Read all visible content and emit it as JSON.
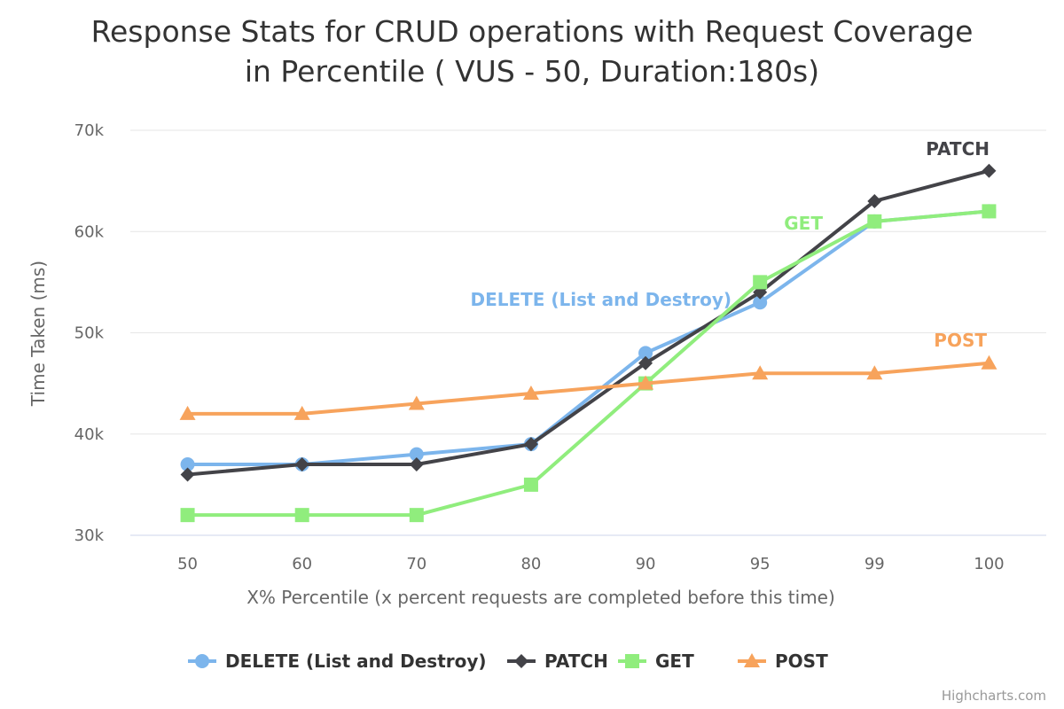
{
  "chart_data": {
    "type": "line",
    "title": "Response Stats for CRUD operations with Request Coverage",
    "subtitle_line": "in Percentile ( VUS - 50, Duration:180s)",
    "xlabel": "X% Percentile (x percent requests are completed before this time)",
    "ylabel": "Time Taken (ms)",
    "categories": [
      "50",
      "60",
      "70",
      "80",
      "90",
      "95",
      "99",
      "100"
    ],
    "ylim": [
      30000,
      70000
    ],
    "yticks": [
      {
        "value": 30000,
        "label": "30k"
      },
      {
        "value": 40000,
        "label": "40k"
      },
      {
        "value": 50000,
        "label": "50k"
      },
      {
        "value": 60000,
        "label": "60k"
      },
      {
        "value": 70000,
        "label": "70k"
      }
    ],
    "grid": true,
    "legend_position": "bottom-center",
    "series": [
      {
        "name": "DELETE (List and Destroy)",
        "color": "#7cb5ec",
        "marker": "circle",
        "values": [
          37000,
          37000,
          38000,
          39000,
          48000,
          53000,
          61000,
          62000
        ],
        "label_text": "DELETE (List and Destroy)"
      },
      {
        "name": "PATCH",
        "color": "#434348",
        "marker": "diamond",
        "values": [
          36000,
          37000,
          37000,
          39000,
          47000,
          54000,
          63000,
          66000
        ],
        "label_text": "PATCH"
      },
      {
        "name": "GET",
        "color": "#90ed7d",
        "marker": "square",
        "values": [
          32000,
          32000,
          32000,
          35000,
          45000,
          55000,
          61000,
          62000
        ],
        "label_text": "GET"
      },
      {
        "name": "POST",
        "color": "#f7a35c",
        "marker": "triangle",
        "values": [
          42000,
          42000,
          43000,
          44000,
          45000,
          46000,
          46000,
          47000
        ],
        "label_text": "POST"
      }
    ],
    "credit": "Highcharts.com"
  }
}
